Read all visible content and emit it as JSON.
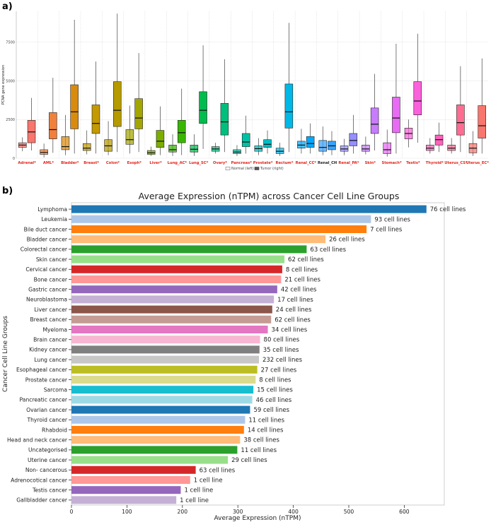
{
  "chart_data": [
    {
      "type": "box",
      "panel_label": "a)",
      "ylabel": "PCNA gene expression",
      "ylim": [
        0,
        9500
      ],
      "yticks": [
        0,
        2500,
        5000,
        7500
      ],
      "legend": {
        "normal": "Normal (left)",
        "tumor": "Tumor (right)"
      },
      "groups": [
        {
          "label": "Adrenal*",
          "color": "#f8766d",
          "sig": true,
          "normal": {
            "min": 450,
            "q1": 700,
            "median": 850,
            "q3": 1000,
            "max": 1350
          },
          "tumor": {
            "min": 500,
            "q1": 1000,
            "median": 1700,
            "q3": 2450,
            "max": 3900
          }
        },
        {
          "label": "AML*",
          "color": "#f0803c",
          "sig": true,
          "normal": {
            "min": 50,
            "q1": 250,
            "median": 380,
            "q3": 550,
            "max": 950
          },
          "tumor": {
            "min": 350,
            "q1": 1250,
            "median": 1850,
            "q3": 2950,
            "max": 5200
          }
        },
        {
          "label": "Bladder*",
          "color": "#d98b0e",
          "sig": true,
          "normal": {
            "min": 200,
            "q1": 550,
            "median": 750,
            "q3": 1400,
            "max": 2800
          },
          "tumor": {
            "min": 300,
            "q1": 1900,
            "median": 3000,
            "q3": 4750,
            "max": 8950
          }
        },
        {
          "label": "Breast*",
          "color": "#c49a00",
          "sig": true,
          "normal": {
            "min": 250,
            "q1": 500,
            "median": 650,
            "q3": 950,
            "max": 1800
          },
          "tumor": {
            "min": 300,
            "q1": 1600,
            "median": 2250,
            "q3": 3450,
            "max": 6250
          }
        },
        {
          "label": "Colon*",
          "color": "#b59a00",
          "sig": true,
          "normal": {
            "min": 200,
            "q1": 450,
            "median": 800,
            "q3": 1200,
            "max": 2400
          },
          "tumor": {
            "min": 400,
            "q1": 2050,
            "median": 3100,
            "q3": 4950,
            "max": 9350
          }
        },
        {
          "label": "Esoph*",
          "color": "#a3a500",
          "sig": true,
          "normal": {
            "min": 300,
            "q1": 900,
            "median": 1200,
            "q3": 1850,
            "max": 3400
          },
          "tumor": {
            "min": 400,
            "q1": 1900,
            "median": 2600,
            "q3": 3850,
            "max": 6800
          }
        },
        {
          "label": "Liver*",
          "color": "#7cae00",
          "sig": true,
          "normal": {
            "min": 150,
            "q1": 250,
            "median": 350,
            "q3": 500,
            "max": 750
          },
          "tumor": {
            "min": 200,
            "q1": 700,
            "median": 1100,
            "q3": 1800,
            "max": 3350
          }
        },
        {
          "label": "Lung_AC*",
          "color": "#39b600",
          "sig": true,
          "normal": {
            "min": 150,
            "q1": 400,
            "median": 550,
            "q3": 850,
            "max": 1550
          },
          "tumor": {
            "min": 200,
            "q1": 1000,
            "median": 1650,
            "q3": 2450,
            "max": 4500
          }
        },
        {
          "label": "Lung_SC*",
          "color": "#00bb4e",
          "sig": true,
          "normal": {
            "min": 150,
            "q1": 400,
            "median": 580,
            "q3": 850,
            "max": 1550
          },
          "tumor": {
            "min": 600,
            "q1": 2250,
            "median": 3100,
            "q3": 4300,
            "max": 7300
          }
        },
        {
          "label": "Ovary*",
          "color": "#00bf7d",
          "sig": true,
          "normal": {
            "min": 300,
            "q1": 450,
            "median": 600,
            "q3": 750,
            "max": 1000
          },
          "tumor": {
            "min": 400,
            "q1": 1500,
            "median": 2350,
            "q3": 3550,
            "max": 6400
          }
        },
        {
          "label": "Pancreas*",
          "color": "#00c1a3",
          "sig": true,
          "normal": {
            "min": 150,
            "q1": 300,
            "median": 400,
            "q3": 550,
            "max": 850
          },
          "tumor": {
            "min": 300,
            "q1": 750,
            "median": 1050,
            "q3": 1600,
            "max": 2750
          }
        },
        {
          "label": "Prostate*",
          "color": "#00bfc4",
          "sig": true,
          "normal": {
            "min": 200,
            "q1": 450,
            "median": 620,
            "q3": 800,
            "max": 1300
          },
          "tumor": {
            "min": 300,
            "q1": 700,
            "median": 900,
            "q3": 1200,
            "max": 1800
          }
        },
        {
          "label": "Rectum*",
          "color": "#00b8e7",
          "sig": true,
          "normal": {
            "min": 150,
            "q1": 300,
            "median": 450,
            "q3": 650,
            "max": 1000
          },
          "tumor": {
            "min": 400,
            "q1": 1950,
            "median": 3000,
            "q3": 4800,
            "max": 8750
          }
        },
        {
          "label": "Renal_CC*",
          "color": "#00a9ff",
          "sig": true,
          "normal": {
            "min": 300,
            "q1": 650,
            "median": 850,
            "q3": 1100,
            "max": 1900
          },
          "tumor": {
            "min": 300,
            "q1": 700,
            "median": 950,
            "q3": 1400,
            "max": 2250
          }
        },
        {
          "label": "Renal_CH",
          "color": "#35a2ff",
          "sig": false,
          "normal": {
            "min": 200,
            "q1": 450,
            "median": 700,
            "q3": 1150,
            "max": 2050
          },
          "tumor": {
            "min": 200,
            "q1": 550,
            "median": 800,
            "q3": 1100,
            "max": 1750
          }
        },
        {
          "label": "Renal_PA*",
          "color": "#9590ff",
          "sig": true,
          "normal": {
            "min": 200,
            "q1": 450,
            "median": 600,
            "q3": 800,
            "max": 1250
          },
          "tumor": {
            "min": 300,
            "q1": 800,
            "median": 1150,
            "q3": 1600,
            "max": 2800
          }
        },
        {
          "label": "Skin*",
          "color": "#c77cff",
          "sig": true,
          "normal": {
            "min": 250,
            "q1": 450,
            "median": 600,
            "q3": 850,
            "max": 1400
          },
          "tumor": {
            "min": 500,
            "q1": 1600,
            "median": 2200,
            "q3": 3250,
            "max": 5450
          }
        },
        {
          "label": "Stomach*",
          "color": "#e76bf3",
          "sig": true,
          "normal": {
            "min": 100,
            "q1": 300,
            "median": 550,
            "q3": 1000,
            "max": 1850
          },
          "tumor": {
            "min": 300,
            "q1": 1650,
            "median": 2600,
            "q3": 3950,
            "max": 7400
          }
        },
        {
          "label": "Testis*",
          "color": "#fa62db",
          "sig": true,
          "normal": {
            "min": 700,
            "q1": 1250,
            "median": 1600,
            "q3": 1950,
            "max": 2500
          },
          "tumor": {
            "min": 1000,
            "q1": 2800,
            "median": 3700,
            "q3": 4950,
            "max": 8050
          }
        },
        {
          "label": "Thyroid*",
          "color": "#ff62bc",
          "sig": true,
          "normal": {
            "min": 300,
            "q1": 500,
            "median": 650,
            "q3": 850,
            "max": 1300
          },
          "tumor": {
            "min": 400,
            "q1": 850,
            "median": 1200,
            "q3": 1500,
            "max": 2300
          }
        },
        {
          "label": "Uterus_CS*",
          "color": "#ff6c91",
          "sig": true,
          "normal": {
            "min": 300,
            "q1": 500,
            "median": 650,
            "q3": 850,
            "max": 1300
          },
          "tumor": {
            "min": 400,
            "q1": 1500,
            "median": 2300,
            "q3": 3450,
            "max": 5950
          }
        },
        {
          "label": "Uterus_EC*",
          "color": "#f8766d",
          "sig": true,
          "normal": {
            "min": 150,
            "q1": 350,
            "median": 650,
            "q3": 950,
            "max": 1750
          },
          "tumor": {
            "min": 300,
            "q1": 1300,
            "median": 2100,
            "q3": 3400,
            "max": 6450
          }
        }
      ]
    },
    {
      "type": "bar",
      "orientation": "horizontal",
      "panel_label": "b)",
      "title": "Average Expression (nTPM) across Cancer Cell Line Groups",
      "xlabel": "Average Expression (nTPM)",
      "ylabel": "Cancer Cell Line Groups",
      "xlim": [
        0,
        670
      ],
      "xticks": [
        0,
        100,
        200,
        300,
        400,
        500,
        600
      ],
      "categories": [
        "Lymphoma",
        "Leukemia",
        "Bile duct cancer",
        "Bladder cancer",
        "Colorectal cancer",
        "Skin cancer",
        "Cervical cancer",
        "Bone cancer",
        "Gastric cancer",
        "Neuroblastoma",
        "Liver cancer",
        "Breast cancer",
        "Myeloma",
        "Brain cancer",
        "Kidney cancer",
        "Lung cancer",
        "Esophageal cancer",
        "Prostate cancer",
        "Sarcoma",
        "Pancreatic cancer",
        "Ovarian cancer",
        "Thyroid cancer",
        "Rhabdoid",
        "Head and neck cancer",
        "Uncategorised",
        "Uterine cancer",
        "Non- cancerous",
        "Adrenocotical cancer",
        "Testis cancer",
        "Gallbladder cancer"
      ],
      "values": [
        640,
        540,
        532,
        458,
        424,
        384,
        380,
        378,
        371,
        365,
        362,
        360,
        354,
        340,
        339,
        338,
        335,
        332,
        328,
        326,
        322,
        313,
        311,
        304,
        299,
        282,
        224,
        214,
        197,
        189
      ],
      "annotations": [
        "76 cell lines",
        "93 cell lines",
        "7 cell lines",
        "26 cell lines",
        "63 cell lines",
        "62 cell lines",
        "8 cell lines",
        "21 cell lines",
        "42 cell lines",
        "17 cell lines",
        "24 cell lines",
        "62 cell lines",
        "34 cell lines",
        "80 cell lines",
        "35 cell lines",
        "232 cell lines",
        "27 cell lines",
        "8 cell lines",
        "15 cell lines",
        "46 cell lines",
        "59 cell lines",
        "11 cell lines",
        "14 cell lines",
        "38 cell lines",
        "11 cell lines",
        "29 cell lines",
        "63 cell lines",
        "1 cell line",
        "1 cell line",
        "1 cell line"
      ],
      "colors": [
        "#1f77b4",
        "#aec7e8",
        "#ff7f0e",
        "#ffbb78",
        "#2ca02c",
        "#98df8a",
        "#d62728",
        "#ff9896",
        "#9467bd",
        "#c5b0d5",
        "#8c564b",
        "#c49c94",
        "#e377c2",
        "#f7b6d2",
        "#7f7f7f",
        "#c7c7c7",
        "#bcbd22",
        "#dbdb8d",
        "#17becf",
        "#9edae5",
        "#1f77b4",
        "#aec7e8",
        "#ff7f0e",
        "#ffbb78",
        "#2ca02c",
        "#98df8a",
        "#d62728",
        "#ff9896",
        "#9467bd",
        "#c5b0d5"
      ]
    }
  ]
}
